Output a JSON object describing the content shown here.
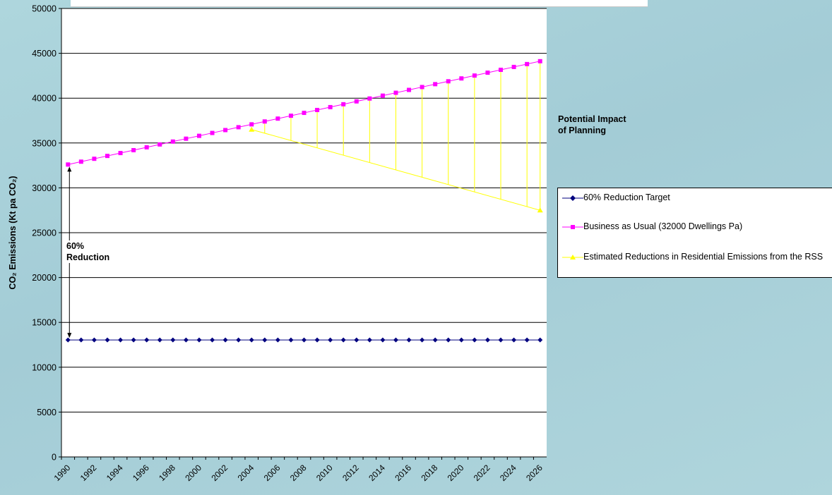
{
  "colors": {
    "target": "#00007f",
    "bau": "#ff00ff",
    "rss": "#ffff00",
    "grid": "#000000"
  },
  "annotations": {
    "impact": "Potential Impact\nof Planning",
    "reduction": "60%\nReduction"
  },
  "chart_data": {
    "type": "line",
    "title": "",
    "xlabel": "",
    "ylabel": "CO₂ Emissions (Kt pa CO₂)",
    "ylim": [
      0,
      50000
    ],
    "yticks": [
      0,
      5000,
      10000,
      15000,
      20000,
      25000,
      30000,
      35000,
      40000,
      45000,
      50000
    ],
    "xtick_labels": [
      "1990",
      "1992",
      "1994",
      "1996",
      "1998",
      "2000",
      "2002",
      "2004",
      "2006",
      "2008",
      "2010",
      "2012",
      "2014",
      "2016",
      "2018",
      "2020",
      "2022",
      "2024",
      "2026"
    ],
    "x": [
      1990,
      1991,
      1992,
      1993,
      1994,
      1995,
      1996,
      1997,
      1998,
      1999,
      2000,
      2001,
      2002,
      2003,
      2004,
      2005,
      2006,
      2007,
      2008,
      2009,
      2010,
      2011,
      2012,
      2013,
      2014,
      2015,
      2016,
      2017,
      2018,
      2019,
      2020,
      2021,
      2022,
      2023,
      2024,
      2025,
      2026
    ],
    "grid": "horizontal major gridlines",
    "legend_position": "right",
    "series": [
      {
        "name": "60% Reduction Target",
        "marker": "diamond",
        "values": [
          13040,
          13040,
          13040,
          13040,
          13040,
          13040,
          13040,
          13040,
          13040,
          13040,
          13040,
          13040,
          13040,
          13040,
          13040,
          13040,
          13040,
          13040,
          13040,
          13040,
          13040,
          13040,
          13040,
          13040,
          13040,
          13040,
          13040,
          13040,
          13040,
          13040,
          13040,
          13040,
          13040,
          13040,
          13040,
          13040,
          13040
        ]
      },
      {
        "name": "Business as Usual (32000 Dwellings Pa)",
        "marker": "square",
        "values": [
          32600,
          32920,
          33240,
          33560,
          33880,
          34200,
          34520,
          34840,
          35160,
          35480,
          35800,
          36120,
          36440,
          36760,
          37080,
          37400,
          37720,
          38040,
          38360,
          38680,
          39000,
          39320,
          39640,
          39960,
          40280,
          40600,
          40920,
          41240,
          41560,
          41880,
          42200,
          42520,
          42840,
          43160,
          43480,
          43800,
          44120
        ]
      },
      {
        "name": "Estimated Reductions in Residential Emissions from the RSS",
        "marker": "triangle",
        "x": [
          2004,
          2026
        ],
        "values": [
          36500,
          27500
        ]
      }
    ],
    "range_bars": {
      "x": [
        2005,
        2007,
        2009,
        2011,
        2013,
        2015,
        2017,
        2019,
        2021,
        2023,
        2025,
        2026
      ],
      "note": "vertical lines between BAU and RSS estimate"
    }
  }
}
